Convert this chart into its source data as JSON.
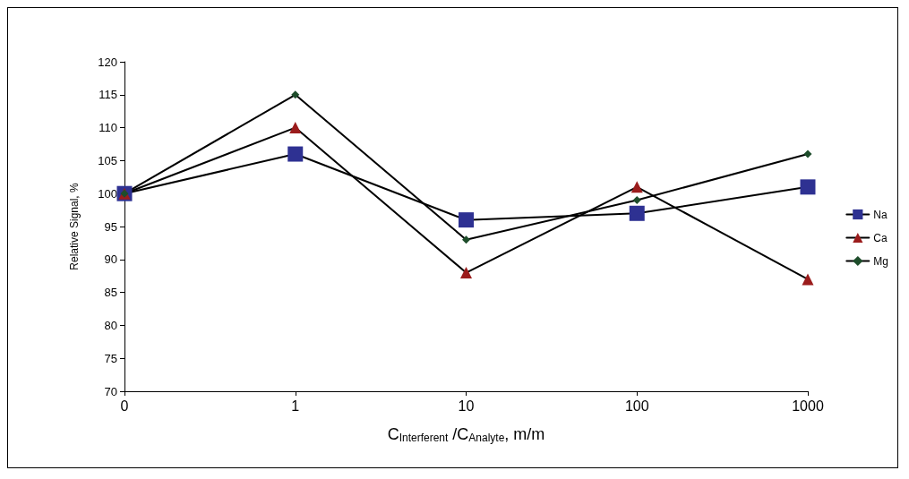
{
  "chart_data": {
    "type": "line",
    "xlabel": "C$_{Interferent}$ /C$_{Analyte}$, m/m",
    "ylabel": "Relative Signal, %",
    "categories": [
      "0",
      "1",
      "10",
      "100",
      "1000"
    ],
    "series": [
      {
        "name": "Na",
        "color": "#2e3192",
        "marker": "square",
        "values": [
          100,
          106,
          96,
          97,
          101
        ]
      },
      {
        "name": "Ca",
        "color": "#9b1c1c",
        "marker": "triangle",
        "values": [
          100,
          110,
          88,
          101,
          87
        ]
      },
      {
        "name": "Mg",
        "color": "#1e4d2b",
        "marker": "diamond",
        "values": [
          100,
          115,
          93,
          99,
          106
        ]
      }
    ],
    "ylim": [
      70,
      120
    ],
    "yticks": [
      70,
      75,
      80,
      85,
      90,
      95,
      100,
      105,
      110,
      115,
      120
    ],
    "grid": false,
    "legend": "right",
    "line_style": "solid"
  }
}
